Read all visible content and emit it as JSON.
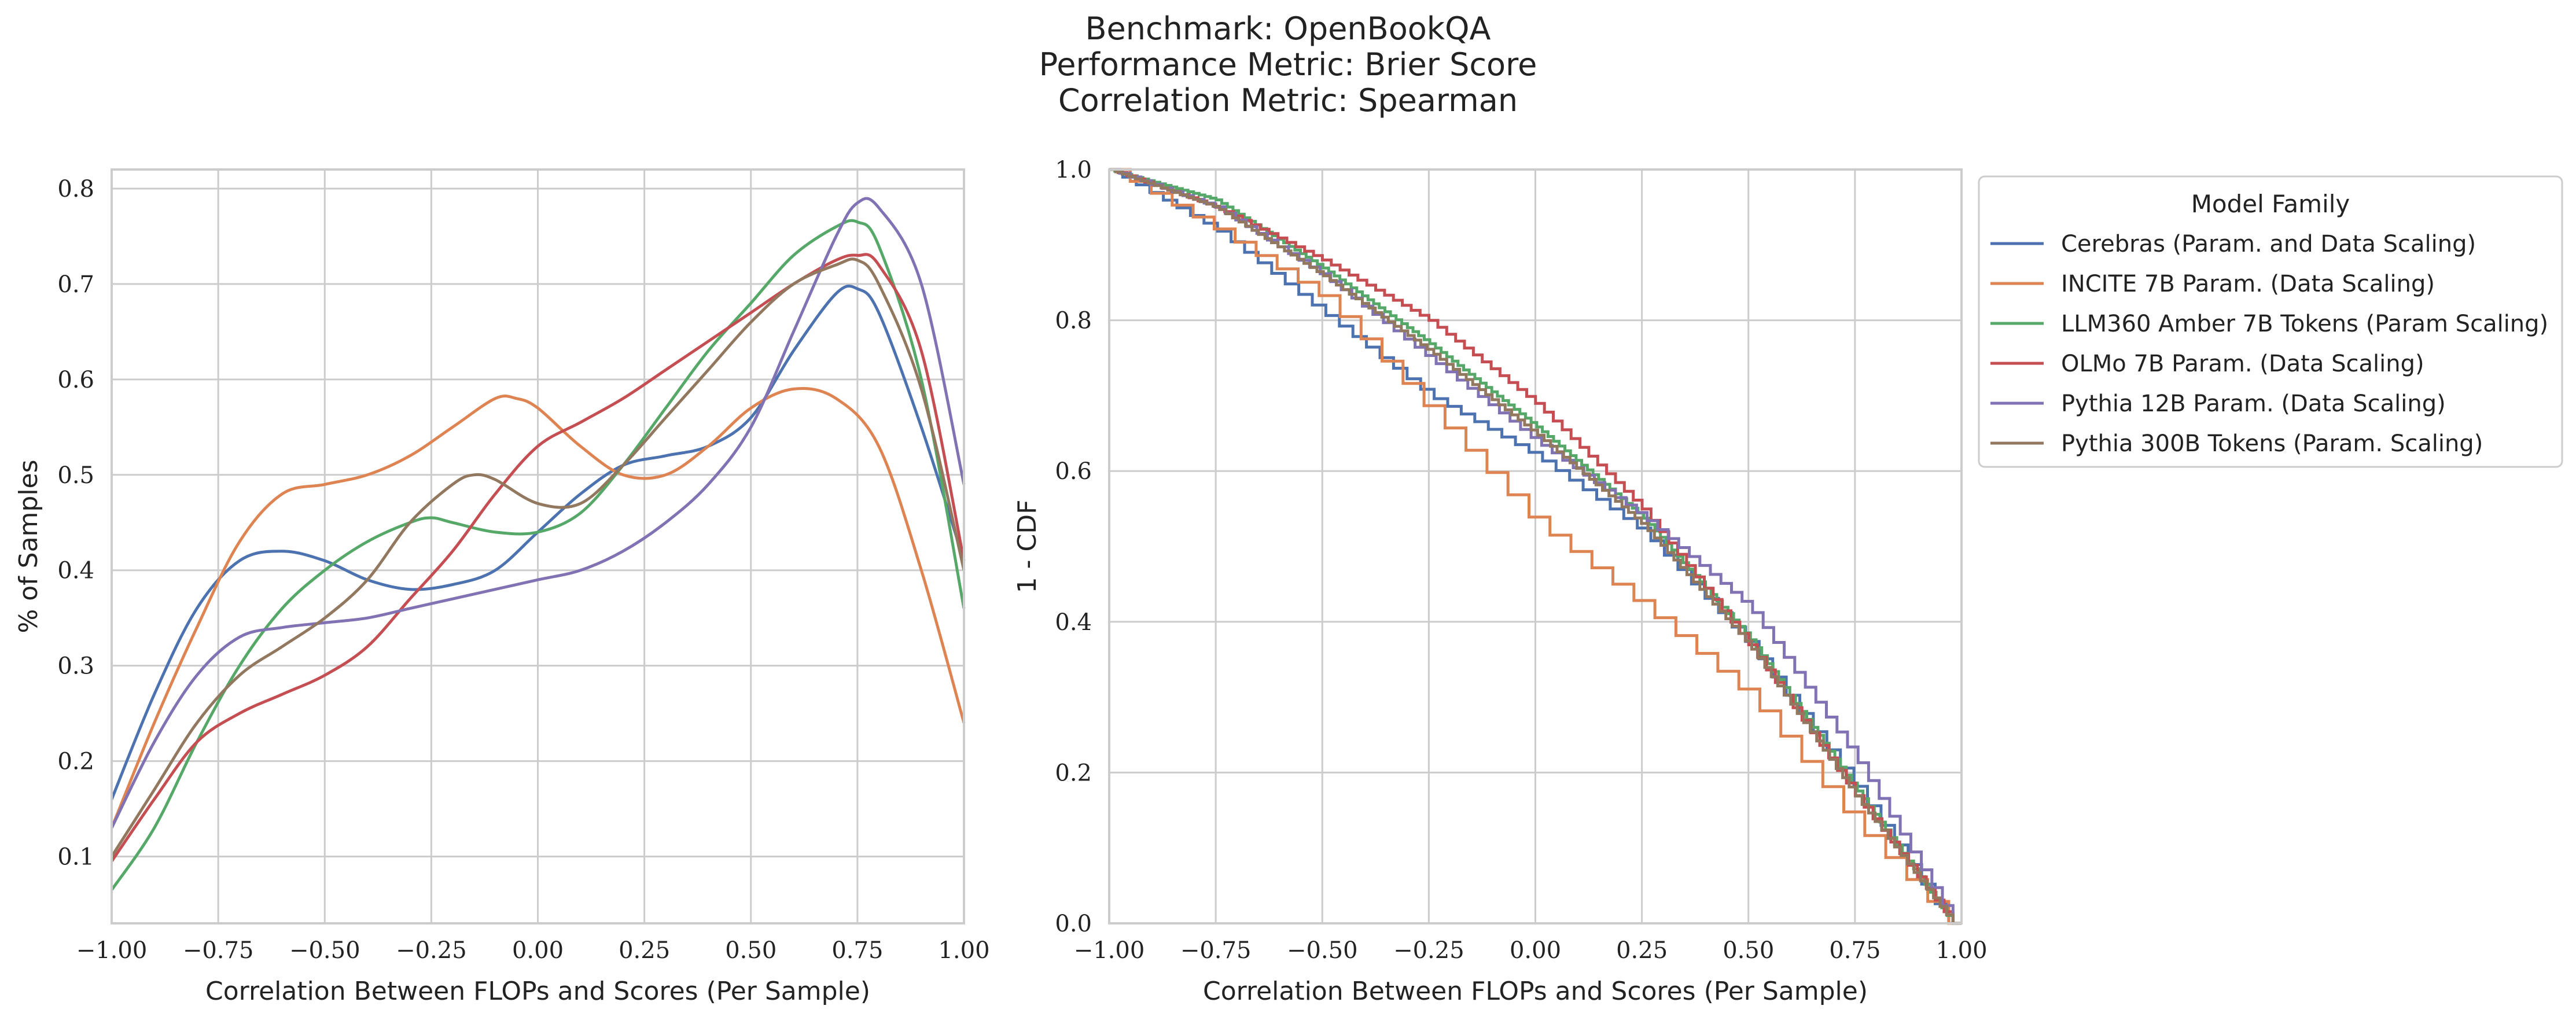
{
  "figure": {
    "title_lines": [
      "Benchmark: OpenBookQA",
      "Performance Metric: Brier Score",
      "Correlation Metric: Spearman"
    ]
  },
  "chart_data": [
    {
      "type": "line",
      "subtype": "kde",
      "xlabel": "Correlation Between FLOPs and Scores (Per Sample)",
      "ylabel": "% of Samples",
      "xlim": [
        -1.0,
        1.0
      ],
      "ylim": [
        0.03,
        0.82
      ],
      "xticks": [
        "−1.00",
        "−0.75",
        "−0.50",
        "−0.25",
        "0.00",
        "0.25",
        "0.50",
        "0.75",
        "1.00"
      ],
      "xtick_values": [
        -1.0,
        -0.75,
        -0.5,
        -0.25,
        0.0,
        0.25,
        0.5,
        0.75,
        1.0
      ],
      "yticks": [
        "0.1",
        "0.2",
        "0.3",
        "0.4",
        "0.5",
        "0.6",
        "0.7",
        "0.8"
      ],
      "ytick_values": [
        0.1,
        0.2,
        0.3,
        0.4,
        0.5,
        0.6,
        0.7,
        0.8
      ],
      "grid": true,
      "series": [
        {
          "name": "Cerebras (Param. and Data Scaling)",
          "color": "#4c72b0",
          "x": [
            -1.0,
            -0.9,
            -0.8,
            -0.7,
            -0.6,
            -0.5,
            -0.4,
            -0.3,
            -0.2,
            -0.1,
            0.0,
            0.1,
            0.2,
            0.3,
            0.4,
            0.5,
            0.6,
            0.7,
            0.75,
            0.8,
            0.9,
            1.0
          ],
          "y": [
            0.16,
            0.27,
            0.36,
            0.41,
            0.42,
            0.41,
            0.39,
            0.38,
            0.385,
            0.4,
            0.44,
            0.48,
            0.51,
            0.52,
            0.53,
            0.56,
            0.63,
            0.69,
            0.695,
            0.67,
            0.55,
            0.41
          ]
        },
        {
          "name": "INCITE 7B Param. (Data Scaling)",
          "color": "#dd8452",
          "x": [
            -1.0,
            -0.9,
            -0.8,
            -0.7,
            -0.6,
            -0.5,
            -0.4,
            -0.3,
            -0.2,
            -0.1,
            -0.05,
            0.0,
            0.1,
            0.2,
            0.3,
            0.4,
            0.5,
            0.6,
            0.7,
            0.8,
            0.9,
            1.0
          ],
          "y": [
            0.13,
            0.24,
            0.34,
            0.43,
            0.48,
            0.49,
            0.5,
            0.52,
            0.55,
            0.58,
            0.58,
            0.57,
            0.53,
            0.5,
            0.5,
            0.53,
            0.57,
            0.59,
            0.58,
            0.53,
            0.4,
            0.24
          ]
        },
        {
          "name": "LLM360 Amber 7B Tokens (Param Scaling)",
          "color": "#55a868",
          "x": [
            -1.0,
            -0.9,
            -0.8,
            -0.7,
            -0.6,
            -0.5,
            -0.4,
            -0.3,
            -0.25,
            -0.2,
            -0.1,
            0.0,
            0.1,
            0.2,
            0.3,
            0.4,
            0.5,
            0.6,
            0.7,
            0.75,
            0.8,
            0.9,
            1.0
          ],
          "y": [
            0.065,
            0.13,
            0.22,
            0.3,
            0.36,
            0.4,
            0.43,
            0.45,
            0.455,
            0.45,
            0.44,
            0.44,
            0.46,
            0.51,
            0.57,
            0.63,
            0.68,
            0.73,
            0.76,
            0.765,
            0.74,
            0.6,
            0.36
          ]
        },
        {
          "name": "OLMo 7B Param. (Data Scaling)",
          "color": "#c44e52",
          "x": [
            -1.0,
            -0.9,
            -0.8,
            -0.7,
            -0.6,
            -0.5,
            -0.4,
            -0.3,
            -0.2,
            -0.1,
            0.0,
            0.1,
            0.2,
            0.3,
            0.4,
            0.5,
            0.6,
            0.7,
            0.75,
            0.8,
            0.9,
            1.0
          ],
          "y": [
            0.095,
            0.16,
            0.22,
            0.25,
            0.27,
            0.29,
            0.32,
            0.37,
            0.42,
            0.48,
            0.53,
            0.555,
            0.58,
            0.61,
            0.64,
            0.67,
            0.7,
            0.725,
            0.73,
            0.72,
            0.63,
            0.41
          ]
        },
        {
          "name": "Pythia 12B Param. (Data Scaling)",
          "color": "#8172b3",
          "x": [
            -1.0,
            -0.9,
            -0.8,
            -0.7,
            -0.6,
            -0.5,
            -0.4,
            -0.3,
            -0.2,
            -0.1,
            0.0,
            0.1,
            0.2,
            0.3,
            0.4,
            0.5,
            0.6,
            0.7,
            0.75,
            0.8,
            0.9,
            1.0
          ],
          "y": [
            0.13,
            0.22,
            0.29,
            0.33,
            0.34,
            0.345,
            0.35,
            0.36,
            0.37,
            0.38,
            0.39,
            0.4,
            0.42,
            0.45,
            0.49,
            0.55,
            0.65,
            0.75,
            0.785,
            0.78,
            0.7,
            0.49
          ]
        },
        {
          "name": "Pythia 300B Tokens (Param. Scaling)",
          "color": "#937860",
          "x": [
            -1.0,
            -0.9,
            -0.8,
            -0.7,
            -0.6,
            -0.5,
            -0.4,
            -0.3,
            -0.2,
            -0.15,
            -0.1,
            0.0,
            0.1,
            0.2,
            0.3,
            0.4,
            0.5,
            0.6,
            0.7,
            0.75,
            0.8,
            0.9,
            1.0
          ],
          "y": [
            0.1,
            0.17,
            0.24,
            0.29,
            0.32,
            0.35,
            0.39,
            0.45,
            0.49,
            0.5,
            0.495,
            0.47,
            0.47,
            0.51,
            0.56,
            0.61,
            0.66,
            0.7,
            0.72,
            0.725,
            0.7,
            0.59,
            0.4
          ]
        }
      ]
    },
    {
      "type": "line",
      "subtype": "step",
      "xlabel": "Correlation Between FLOPs and Scores (Per Sample)",
      "ylabel": "1 - CDF",
      "xlim": [
        -1.0,
        1.0
      ],
      "ylim": [
        0.0,
        1.0
      ],
      "xticks": [
        "−1.00",
        "−0.75",
        "−0.50",
        "−0.25",
        "0.00",
        "0.25",
        "0.50",
        "0.75",
        "1.00"
      ],
      "xtick_values": [
        -1.0,
        -0.75,
        -0.5,
        -0.25,
        0.0,
        0.25,
        0.5,
        0.75,
        1.0
      ],
      "yticks": [
        "0.0",
        "0.2",
        "0.4",
        "0.6",
        "0.8",
        "1.0"
      ],
      "ytick_values": [
        0.0,
        0.2,
        0.4,
        0.6,
        0.8,
        1.0
      ],
      "grid": true,
      "legend": {
        "title": "Model Family",
        "placement": "outside-right"
      },
      "series": [
        {
          "name": "Cerebras (Param. and Data Scaling)",
          "color": "#4c72b0",
          "steps": 62,
          "x": [
            -1.0,
            -0.75,
            -0.5,
            -0.25,
            0.0,
            0.25,
            0.5,
            0.75,
            0.97
          ],
          "y": [
            1.0,
            0.92,
            0.81,
            0.7,
            0.62,
            0.52,
            0.37,
            0.18,
            0.0
          ]
        },
        {
          "name": "INCITE 7B Param. (Data Scaling)",
          "color": "#dd8452",
          "steps": 40,
          "x": [
            -1.0,
            -0.75,
            -0.5,
            -0.25,
            0.0,
            0.25,
            0.5,
            0.75,
            0.97
          ],
          "y": [
            1.0,
            0.92,
            0.83,
            0.68,
            0.53,
            0.42,
            0.3,
            0.13,
            0.0
          ]
        },
        {
          "name": "LLM360 Amber 7B Tokens (Param Scaling)",
          "color": "#55a868",
          "steps": 150,
          "x": [
            -1.0,
            -0.75,
            -0.5,
            -0.25,
            0.0,
            0.25,
            0.5,
            0.75,
            0.98
          ],
          "y": [
            1.0,
            0.96,
            0.87,
            0.77,
            0.66,
            0.54,
            0.38,
            0.18,
            0.0
          ]
        },
        {
          "name": "OLMo 7B Param. (Data Scaling)",
          "color": "#c44e52",
          "steps": 95,
          "x": [
            -1.0,
            -0.75,
            -0.5,
            -0.25,
            0.0,
            0.25,
            0.5,
            0.75,
            0.98
          ],
          "y": [
            1.0,
            0.95,
            0.88,
            0.8,
            0.69,
            0.55,
            0.37,
            0.17,
            0.0
          ]
        },
        {
          "name": "Pythia 12B Param. (Data Scaling)",
          "color": "#8172b3",
          "steps": 80,
          "x": [
            -1.0,
            -0.75,
            -0.5,
            -0.25,
            0.0,
            0.25,
            0.5,
            0.75,
            0.98
          ],
          "y": [
            1.0,
            0.95,
            0.86,
            0.75,
            0.64,
            0.54,
            0.42,
            0.22,
            0.0
          ]
        },
        {
          "name": "Pythia 300B Tokens (Param. Scaling)",
          "color": "#937860",
          "steps": 130,
          "x": [
            -1.0,
            -0.75,
            -0.5,
            -0.25,
            0.0,
            0.25,
            0.5,
            0.75,
            0.98
          ],
          "y": [
            1.0,
            0.95,
            0.86,
            0.76,
            0.65,
            0.53,
            0.37,
            0.17,
            0.0
          ]
        }
      ]
    }
  ]
}
